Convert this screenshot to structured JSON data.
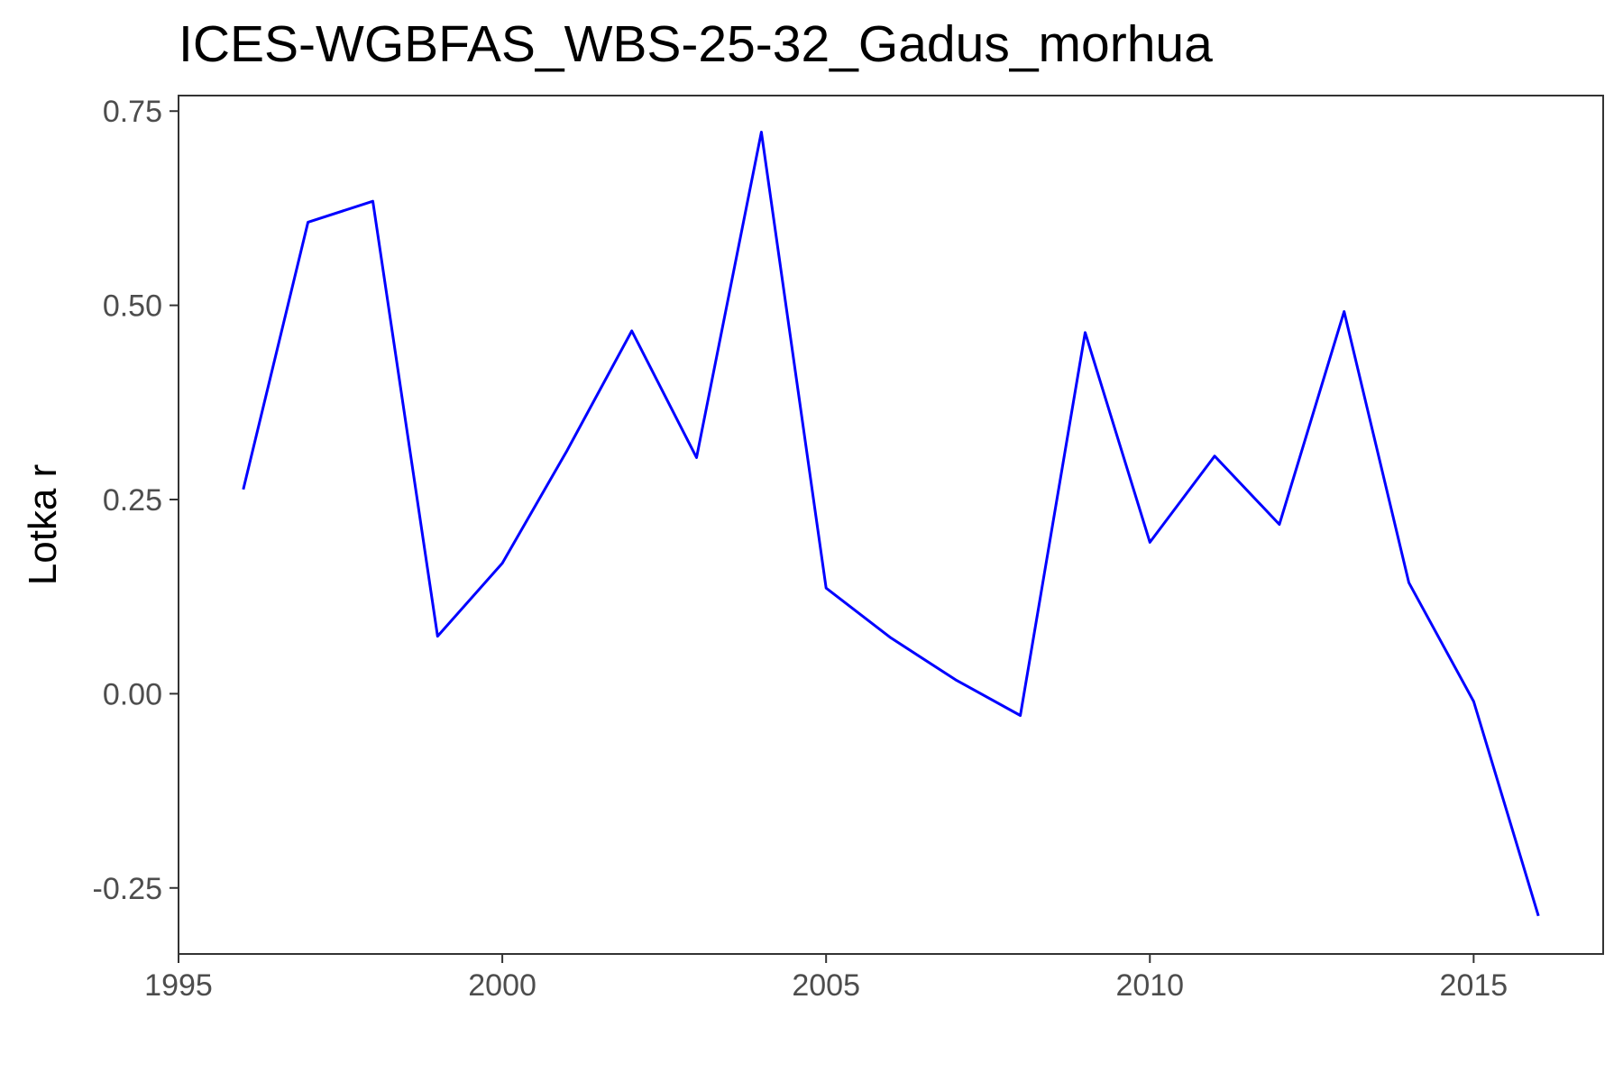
{
  "chart_data": {
    "type": "line",
    "title": "ICES-WGBFAS_WBS-25-32_Gadus_morhua",
    "xlabel": "",
    "ylabel": "Lotka r",
    "xlim": [
      1995,
      2017
    ],
    "ylim": [
      -0.335,
      0.77
    ],
    "x_ticks": [
      1995,
      2000,
      2005,
      2010,
      2015
    ],
    "x_tick_labels": [
      "1995",
      "2000",
      "2005",
      "2010",
      "2015"
    ],
    "y_ticks": [
      -0.25,
      0.0,
      0.25,
      0.5,
      0.75
    ],
    "y_tick_labels": [
      "-0.25",
      "0.00",
      "0.25",
      "0.50",
      "0.75"
    ],
    "grid": false,
    "line_color": "#0000ff",
    "series": [
      {
        "x": [
          1996,
          1997,
          1998,
          1999,
          2000,
          2001,
          2002,
          2003,
          2004,
          2005,
          2006,
          2007,
          2008,
          2009,
          2010,
          2011,
          2012,
          2013,
          2014,
          2015,
          2016
        ],
        "values": [
          0.263,
          0.607,
          0.634,
          0.074,
          0.168,
          0.313,
          0.467,
          0.304,
          0.723,
          0.136,
          0.072,
          0.018,
          -0.028,
          0.465,
          0.195,
          0.306,
          0.218,
          0.492,
          0.143,
          -0.01,
          -0.286
        ]
      }
    ]
  }
}
